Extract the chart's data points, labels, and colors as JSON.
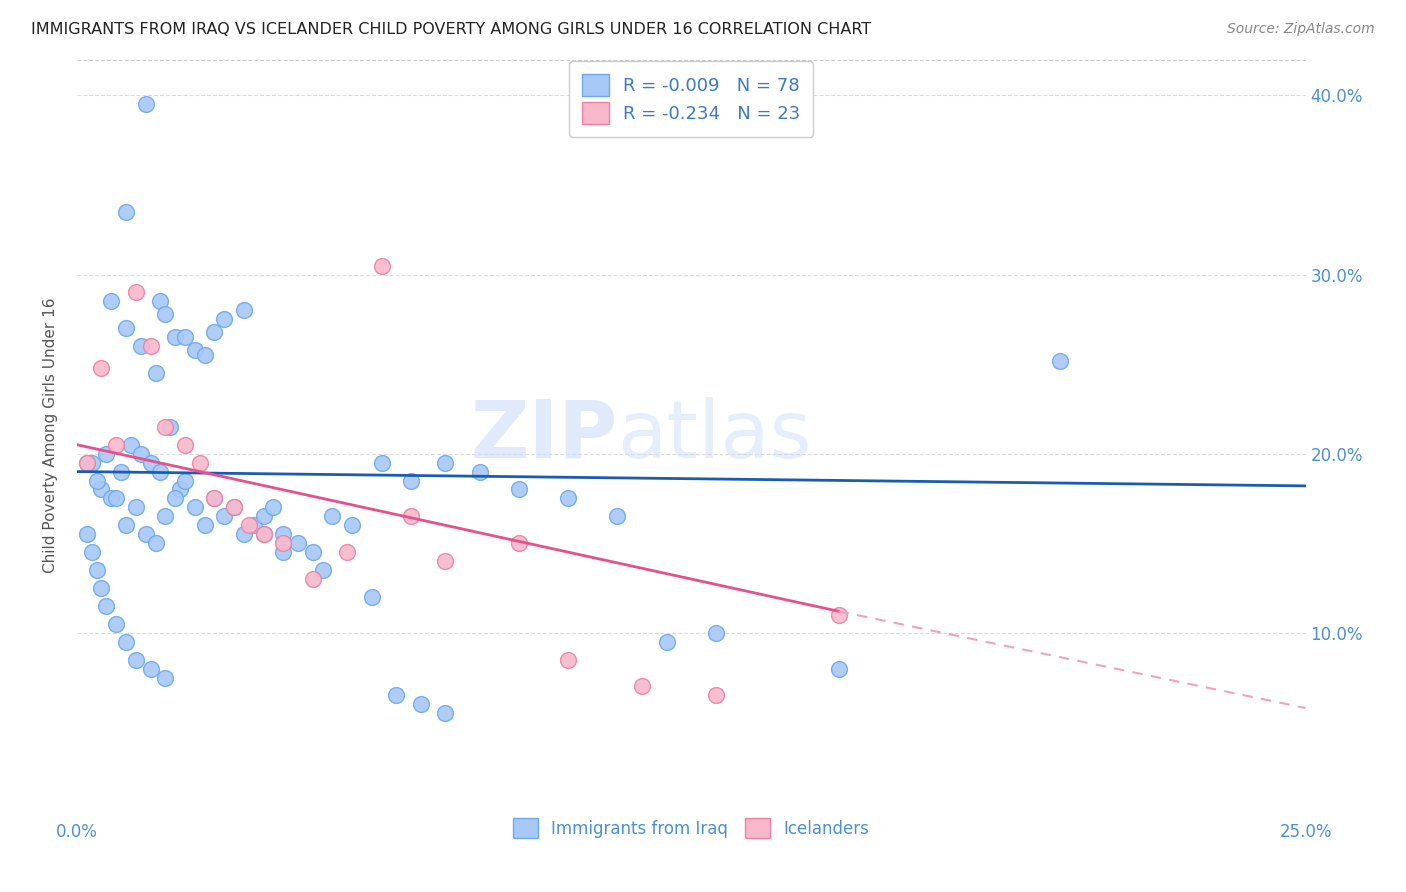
{
  "title": "IMMIGRANTS FROM IRAQ VS ICELANDER CHILD POVERTY AMONG GIRLS UNDER 16 CORRELATION CHART",
  "source": "Source: ZipAtlas.com",
  "ylabel": "Child Poverty Among Girls Under 16",
  "x_min": 0.0,
  "x_max": 0.25,
  "y_min": 0.0,
  "y_max": 0.42,
  "y_ticks": [
    0.1,
    0.2,
    0.3,
    0.4
  ],
  "y_tick_labels": [
    "10.0%",
    "20.0%",
    "30.0%",
    "40.0%"
  ],
  "blue_scatter_color": "#a8c8f8",
  "blue_edge_color": "#6aaaf0",
  "pink_scatter_color": "#f8b8cc",
  "pink_edge_color": "#f080a0",
  "trend_blue_color": "#1a5cb0",
  "trend_pink_solid_color": "#e8508c",
  "trend_pink_dash_color": "#f4a0c0",
  "blue_scatter_x": [
    0.014,
    0.01,
    0.017,
    0.02,
    0.024,
    0.028,
    0.007,
    0.01,
    0.013,
    0.016,
    0.018,
    0.022,
    0.026,
    0.03,
    0.034,
    0.003,
    0.005,
    0.007,
    0.009,
    0.011,
    0.013,
    0.015,
    0.017,
    0.019,
    0.021,
    0.002,
    0.004,
    0.006,
    0.008,
    0.01,
    0.012,
    0.014,
    0.016,
    0.018,
    0.02,
    0.022,
    0.024,
    0.026,
    0.028,
    0.03,
    0.032,
    0.034,
    0.036,
    0.038,
    0.04,
    0.042,
    0.045,
    0.048,
    0.052,
    0.056,
    0.062,
    0.068,
    0.075,
    0.082,
    0.09,
    0.1,
    0.11,
    0.12,
    0.13,
    0.155,
    0.2,
    0.002,
    0.003,
    0.004,
    0.005,
    0.006,
    0.008,
    0.01,
    0.012,
    0.015,
    0.018,
    0.038,
    0.042,
    0.05,
    0.06,
    0.065,
    0.07,
    0.075
  ],
  "blue_scatter_y": [
    0.395,
    0.335,
    0.285,
    0.265,
    0.258,
    0.268,
    0.285,
    0.27,
    0.26,
    0.245,
    0.278,
    0.265,
    0.255,
    0.275,
    0.28,
    0.195,
    0.18,
    0.175,
    0.19,
    0.205,
    0.2,
    0.195,
    0.19,
    0.215,
    0.18,
    0.195,
    0.185,
    0.2,
    0.175,
    0.16,
    0.17,
    0.155,
    0.15,
    0.165,
    0.175,
    0.185,
    0.17,
    0.16,
    0.175,
    0.165,
    0.17,
    0.155,
    0.16,
    0.165,
    0.17,
    0.155,
    0.15,
    0.145,
    0.165,
    0.16,
    0.195,
    0.185,
    0.195,
    0.19,
    0.18,
    0.175,
    0.165,
    0.095,
    0.1,
    0.08,
    0.252,
    0.155,
    0.145,
    0.135,
    0.125,
    0.115,
    0.105,
    0.095,
    0.085,
    0.08,
    0.075,
    0.155,
    0.145,
    0.135,
    0.12,
    0.065,
    0.06,
    0.055
  ],
  "pink_scatter_x": [
    0.002,
    0.005,
    0.008,
    0.012,
    0.015,
    0.018,
    0.022,
    0.025,
    0.028,
    0.032,
    0.035,
    0.038,
    0.042,
    0.048,
    0.055,
    0.062,
    0.068,
    0.075,
    0.09,
    0.1,
    0.115,
    0.13,
    0.155
  ],
  "pink_scatter_y": [
    0.195,
    0.248,
    0.205,
    0.29,
    0.26,
    0.215,
    0.205,
    0.195,
    0.175,
    0.17,
    0.16,
    0.155,
    0.15,
    0.13,
    0.145,
    0.305,
    0.165,
    0.14,
    0.15,
    0.085,
    0.07,
    0.065,
    0.11
  ],
  "blue_trend_start_x": 0.0,
  "blue_trend_end_x": 0.25,
  "blue_trend_start_y": 0.19,
  "blue_trend_end_y": 0.182,
  "pink_trend_start_x": 0.0,
  "pink_trend_solid_end_x": 0.155,
  "pink_trend_end_x": 0.25,
  "pink_trend_start_y": 0.205,
  "pink_trend_solid_end_y": 0.112,
  "pink_trend_end_y": 0.058,
  "watermark_zip": "ZIP",
  "watermark_atlas": "atlas",
  "legend1_label": "R = -0.009   N = 78",
  "legend2_label": "R = -0.234   N = 23",
  "bottom_label1": "Immigrants from Iraq",
  "bottom_label2": "Icelanders"
}
